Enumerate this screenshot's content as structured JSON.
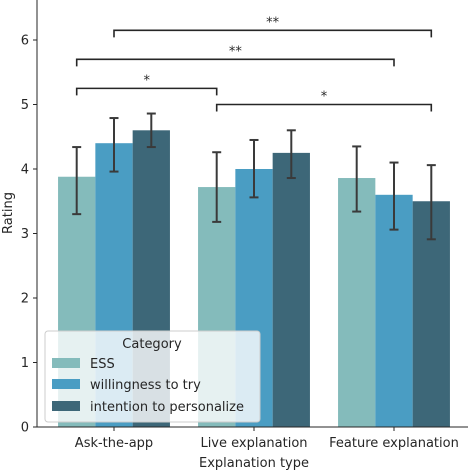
{
  "chart_data": {
    "type": "bar",
    "title": "",
    "xlabel": "Explanation type",
    "ylabel": "Rating",
    "ylim": [
      0,
      6.9
    ],
    "yticks": [
      0,
      1,
      2,
      3,
      4,
      5,
      6
    ],
    "ytick_labels": [
      "0",
      "1",
      "2",
      "3",
      "4",
      "5",
      "6"
    ],
    "categories": [
      "Ask-the-app",
      "Live explanation",
      "Feature explanation"
    ],
    "series": [
      {
        "name": "ESS",
        "color": "#84bbbb",
        "values": [
          3.88,
          3.72,
          3.86
        ],
        "err_low": [
          3.3,
          3.18,
          3.34
        ],
        "err_high": [
          4.34,
          4.26,
          4.35
        ]
      },
      {
        "name": "willingness to try",
        "color": "#4a9dc3",
        "values": [
          4.4,
          4.0,
          3.6
        ],
        "err_low": [
          3.96,
          3.56,
          3.06
        ],
        "err_high": [
          4.79,
          4.45,
          4.1
        ]
      },
      {
        "name": "intention to personalize",
        "color": "#3d6778",
        "values": [
          4.6,
          4.25,
          3.5
        ],
        "err_low": [
          4.34,
          3.86,
          2.91
        ],
        "err_high": [
          4.86,
          4.6,
          4.06
        ]
      }
    ],
    "legend": {
      "title": "Category",
      "placement": "lower-left"
    },
    "annotations": [
      {
        "label": "*",
        "from": [
          "Ask-the-app",
          "ESS"
        ],
        "to": [
          "Live explanation",
          "ESS"
        ],
        "y": 5.25
      },
      {
        "label": "*",
        "from": [
          "Live explanation",
          "ESS"
        ],
        "to": [
          "Feature explanation",
          "intention to personalize"
        ],
        "y": 5.0
      },
      {
        "label": "**",
        "from": [
          "Ask-the-app",
          "ESS"
        ],
        "to": [
          "Feature explanation",
          "willingness to try"
        ],
        "y": 5.7
      },
      {
        "label": "**",
        "from": [
          "Ask-the-app",
          "willingness to try"
        ],
        "to": [
          "Feature explanation",
          "intention to personalize"
        ],
        "y": 6.15
      }
    ]
  }
}
